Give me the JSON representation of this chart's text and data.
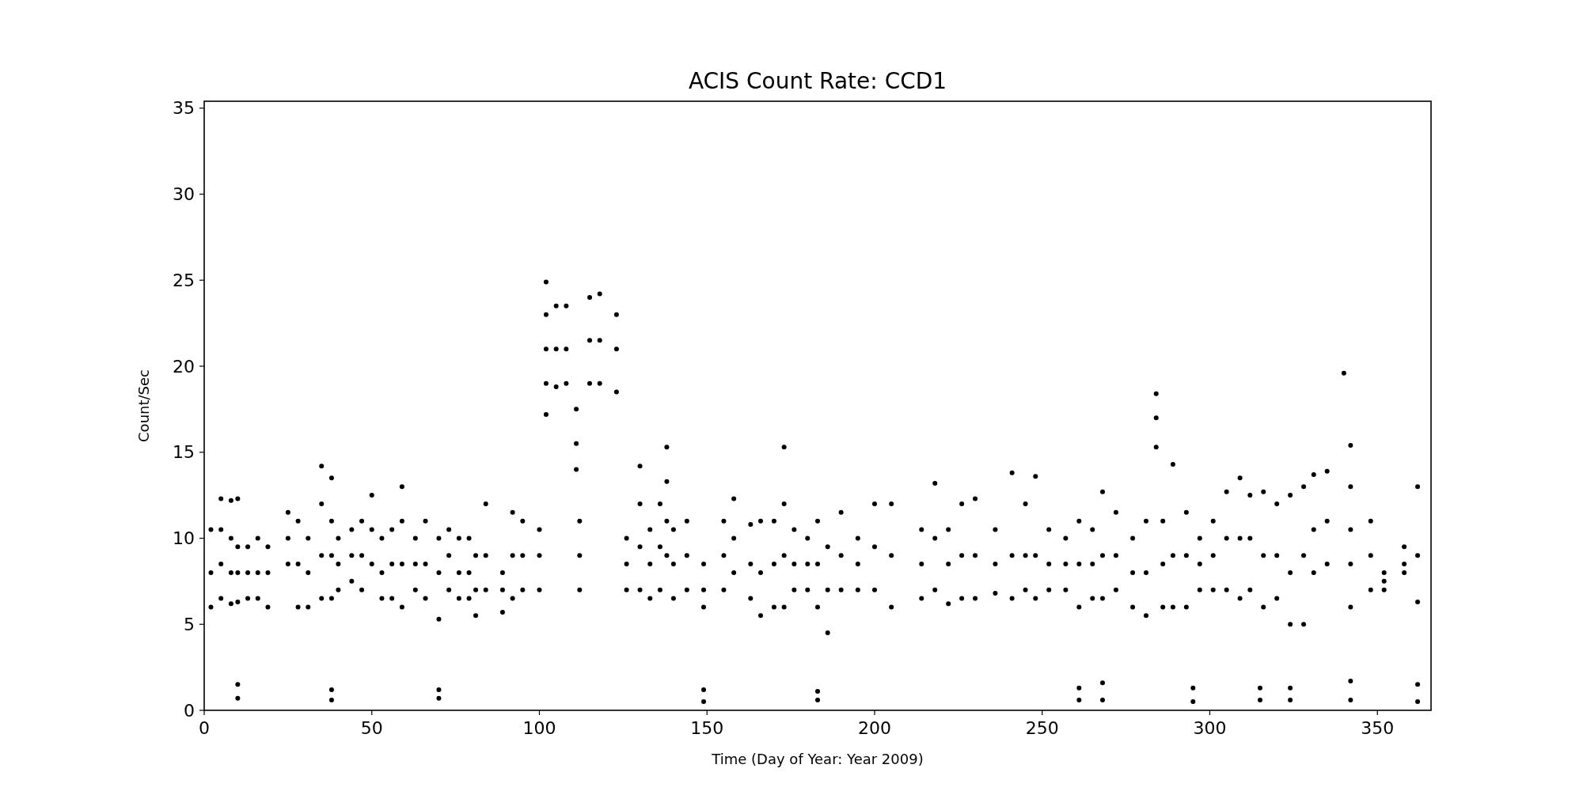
{
  "chart_data": {
    "type": "scatter",
    "title": "ACIS Count Rate: CCD1",
    "xlabel": "Time (Day of Year: Year 2009)",
    "ylabel": "Count/Sec",
    "xlim": [
      0,
      366
    ],
    "ylim": [
      0,
      35.4
    ],
    "xticks": [
      0,
      50,
      100,
      150,
      200,
      250,
      300,
      350
    ],
    "yticks": [
      0,
      5,
      10,
      15,
      20,
      25,
      30,
      35
    ],
    "grid": false,
    "marker": "circle",
    "series": [
      {
        "color": "#000000",
        "x": [
          2,
          2,
          2,
          5,
          5,
          5,
          5,
          8,
          8,
          8,
          8,
          10,
          10,
          10,
          10,
          10,
          10,
          13,
          13,
          13,
          16,
          16,
          16,
          19,
          19,
          19,
          25,
          25,
          25,
          28,
          28,
          28,
          31,
          31,
          31,
          35,
          35,
          35,
          35,
          38,
          38,
          38,
          38,
          38,
          38,
          40,
          40,
          40,
          44,
          44,
          44,
          47,
          47,
          47,
          50,
          50,
          50,
          53,
          53,
          53,
          56,
          56,
          56,
          59,
          59,
          59,
          59,
          63,
          63,
          63,
          66,
          66,
          66,
          70,
          70,
          70,
          70,
          70,
          73,
          73,
          73,
          76,
          76,
          76,
          79,
          79,
          79,
          81,
          81,
          81,
          84,
          84,
          84,
          89,
          89,
          89,
          92,
          92,
          92,
          95,
          95,
          95,
          100,
          100,
          100,
          102,
          102,
          102,
          102,
          102,
          105,
          105,
          105,
          108,
          108,
          108,
          111,
          111,
          111,
          112,
          112,
          112,
          115,
          115,
          115,
          118,
          118,
          118,
          123,
          123,
          123,
          126,
          126,
          126,
          130,
          130,
          130,
          130,
          133,
          133,
          133,
          136,
          136,
          136,
          138,
          138,
          138,
          138,
          140,
          140,
          140,
          144,
          144,
          144,
          149,
          149,
          149,
          149,
          149,
          155,
          155,
          155,
          158,
          158,
          158,
          163,
          163,
          163,
          166,
          166,
          166,
          170,
          170,
          170,
          173,
          173,
          173,
          173,
          176,
          176,
          176,
          180,
          180,
          180,
          183,
          183,
          183,
          183,
          183,
          186,
          186,
          186,
          190,
          190,
          190,
          195,
          195,
          195,
          200,
          200,
          200,
          205,
          205,
          205,
          214,
          214,
          214,
          218,
          218,
          218,
          222,
          222,
          222,
          226,
          226,
          226,
          230,
          230,
          230,
          236,
          236,
          236,
          241,
          241,
          241,
          245,
          245,
          245,
          248,
          248,
          248,
          252,
          252,
          252,
          257,
          257,
          257,
          261,
          261,
          261,
          261,
          261,
          265,
          265,
          265,
          268,
          268,
          268,
          268,
          268,
          272,
          272,
          272,
          277,
          277,
          277,
          281,
          281,
          281,
          284,
          284,
          284,
          286,
          286,
          286,
          289,
          289,
          289,
          293,
          293,
          293,
          295,
          295,
          297,
          297,
          297,
          301,
          301,
          301,
          305,
          305,
          305,
          309,
          309,
          309,
          312,
          312,
          312,
          315,
          315,
          316,
          316,
          316,
          320,
          320,
          320,
          324,
          324,
          324,
          324,
          324,
          328,
          328,
          328,
          331,
          331,
          331,
          335,
          335,
          335,
          340,
          342,
          342,
          342,
          342,
          342,
          342,
          342,
          348,
          348,
          348,
          352,
          352,
          352,
          358,
          358,
          358,
          362,
          362,
          362,
          362,
          362
        ],
        "values": [
          6,
          8,
          10.5,
          6.5,
          8.5,
          10.5,
          12.3,
          6.2,
          8,
          10,
          12.2,
          6.3,
          8,
          9.5,
          12.3,
          0.7,
          1.5,
          6.5,
          8,
          9.5,
          6.5,
          8,
          10,
          6,
          8,
          9.5,
          8.5,
          10,
          11.5,
          6,
          8.5,
          11,
          6,
          8,
          10,
          6.5,
          9,
          12,
          14.2,
          6.5,
          9,
          11,
          13.5,
          0.6,
          1.2,
          7,
          8.5,
          10,
          7.5,
          9,
          10.5,
          7,
          9,
          11,
          8.5,
          10.5,
          12.5,
          6.5,
          8,
          10,
          6.5,
          8.5,
          10.5,
          6,
          8.5,
          11,
          13,
          7,
          8.5,
          10,
          6.5,
          8.5,
          11,
          5.3,
          8,
          10,
          0.7,
          1.2,
          7,
          9,
          10.5,
          6.5,
          8,
          10,
          6.5,
          8,
          10,
          5.5,
          7,
          9,
          7,
          9,
          12,
          5.7,
          7,
          8,
          6.5,
          9,
          11.5,
          7,
          9,
          11,
          7,
          9,
          10.5,
          17.2,
          19,
          21,
          23,
          24.9,
          18.8,
          21,
          23.5,
          19,
          21,
          23.5,
          14,
          15.5,
          17.5,
          7,
          9,
          11,
          19,
          21.5,
          24,
          19,
          21.5,
          24.2,
          18.5,
          21,
          23,
          7,
          8.5,
          10,
          7,
          9.5,
          12,
          14.2,
          6.5,
          8.5,
          10.5,
          7,
          9.5,
          12,
          9,
          11,
          13.3,
          15.3,
          6.5,
          8.5,
          10.5,
          7,
          9,
          11,
          6,
          7,
          8.5,
          0.5,
          1.2,
          7,
          9,
          11,
          8,
          10,
          12.3,
          6.5,
          8.5,
          10.8,
          5.5,
          8,
          11,
          6,
          8.5,
          11,
          6,
          9,
          12,
          15.3,
          7,
          8.5,
          10.5,
          7,
          8.5,
          10,
          6,
          8.5,
          11,
          0.6,
          1.1,
          4.5,
          7,
          9.5,
          7,
          9,
          11.5,
          7,
          8.5,
          10,
          7,
          9.5,
          12,
          6,
          9,
          12,
          6.5,
          8.5,
          10.5,
          7,
          10,
          13.2,
          6.2,
          8.5,
          10.5,
          6.5,
          9,
          12,
          6.5,
          9,
          12.3,
          6.8,
          8.5,
          10.5,
          6.5,
          9,
          13.8,
          7,
          9,
          12,
          6.5,
          9,
          13.6,
          7,
          8.5,
          10.5,
          7,
          8.5,
          10,
          6,
          8.5,
          11,
          0.6,
          1.3,
          6.5,
          8.5,
          10.5,
          6.5,
          9,
          12.7,
          0.6,
          1.6,
          7,
          9,
          11.5,
          6,
          8,
          10,
          5.5,
          8,
          11,
          15.3,
          17,
          18.4,
          6,
          8.5,
          11,
          6,
          9,
          14.3,
          6,
          9,
          11.5,
          0.5,
          1.3,
          7,
          8.5,
          10,
          7,
          9,
          11,
          7,
          10,
          12.7,
          6.5,
          10,
          13.5,
          7,
          10,
          12.5,
          0.6,
          1.3,
          6,
          9,
          12.7,
          6.5,
          9,
          12,
          5,
          8,
          12.5,
          0.6,
          1.3,
          5,
          9,
          13,
          8,
          10.5,
          13.7,
          8.5,
          11,
          13.9,
          19.6,
          6,
          8.5,
          10.5,
          13,
          15.4,
          0.6,
          1.7,
          7,
          9,
          11,
          7,
          7.5,
          8,
          8,
          8.5,
          9.5,
          6.3,
          9,
          13,
          0.5,
          1.5
        ]
      }
    ]
  }
}
